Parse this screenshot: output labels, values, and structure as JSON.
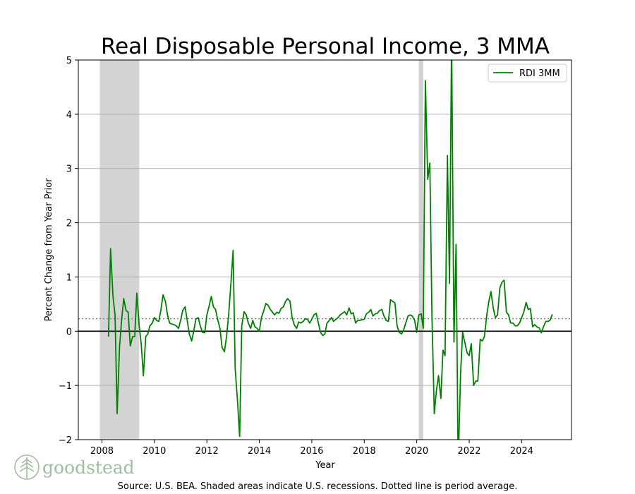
{
  "chart_data": {
    "type": "line",
    "title": "Real Disposable Personal Income, 3 MMA",
    "xlabel": "Year",
    "ylabel": "Percent Change from Year Prior",
    "xlim": [
      2007.1,
      2025.9
    ],
    "ylim": [
      -2,
      5
    ],
    "xticks": [
      2008,
      2010,
      2012,
      2014,
      2016,
      2018,
      2020,
      2022,
      2024
    ],
    "yticks": [
      -2,
      -1,
      0,
      1,
      2,
      3,
      4,
      5
    ],
    "ytick_labels": [
      "−2",
      "−1",
      "0",
      "1",
      "2",
      "3",
      "4",
      "5"
    ],
    "grid": "horizontal",
    "legend_position": "top-right",
    "series": [
      {
        "name": "RDI 3MM",
        "color": "#008000",
        "points": [
          [
            2008.25,
            -0.1
          ],
          [
            2008.33,
            1.52
          ],
          [
            2008.42,
            0.65
          ],
          [
            2008.5,
            0.3
          ],
          [
            2008.58,
            -1.52
          ],
          [
            2008.67,
            -0.3
          ],
          [
            2008.75,
            0.2
          ],
          [
            2008.83,
            0.6
          ],
          [
            2008.92,
            0.38
          ],
          [
            2009.0,
            0.35
          ],
          [
            2009.08,
            -0.27
          ],
          [
            2009.17,
            -0.1
          ],
          [
            2009.25,
            -0.1
          ],
          [
            2009.33,
            0.7
          ],
          [
            2009.42,
            0.1
          ],
          [
            2009.5,
            -0.25
          ],
          [
            2009.58,
            -0.82
          ],
          [
            2009.67,
            -0.1
          ],
          [
            2009.75,
            -0.05
          ],
          [
            2009.83,
            0.1
          ],
          [
            2009.92,
            0.15
          ],
          [
            2010.0,
            0.25
          ],
          [
            2010.08,
            0.2
          ],
          [
            2010.17,
            0.18
          ],
          [
            2010.25,
            0.4
          ],
          [
            2010.33,
            0.67
          ],
          [
            2010.42,
            0.55
          ],
          [
            2010.5,
            0.3
          ],
          [
            2010.58,
            0.15
          ],
          [
            2010.67,
            0.13
          ],
          [
            2010.75,
            0.12
          ],
          [
            2010.83,
            0.1
          ],
          [
            2010.92,
            0.05
          ],
          [
            2011.0,
            0.2
          ],
          [
            2011.08,
            0.38
          ],
          [
            2011.17,
            0.45
          ],
          [
            2011.25,
            0.2
          ],
          [
            2011.33,
            -0.05
          ],
          [
            2011.42,
            -0.18
          ],
          [
            2011.5,
            0.0
          ],
          [
            2011.58,
            0.22
          ],
          [
            2011.67,
            0.25
          ],
          [
            2011.75,
            0.1
          ],
          [
            2011.83,
            -0.02
          ],
          [
            2011.92,
            -0.03
          ],
          [
            2012.0,
            0.3
          ],
          [
            2012.08,
            0.45
          ],
          [
            2012.17,
            0.64
          ],
          [
            2012.25,
            0.45
          ],
          [
            2012.33,
            0.4
          ],
          [
            2012.42,
            0.2
          ],
          [
            2012.5,
            0.05
          ],
          [
            2012.58,
            -0.3
          ],
          [
            2012.67,
            -0.38
          ],
          [
            2012.75,
            -0.1
          ],
          [
            2012.83,
            0.3
          ],
          [
            2012.92,
            0.9
          ],
          [
            2013.0,
            1.49
          ],
          [
            2013.08,
            -0.7
          ],
          [
            2013.17,
            -1.3
          ],
          [
            2013.25,
            -1.94
          ],
          [
            2013.33,
            0.1
          ],
          [
            2013.42,
            0.36
          ],
          [
            2013.5,
            0.3
          ],
          [
            2013.58,
            0.15
          ],
          [
            2013.67,
            0.05
          ],
          [
            2013.75,
            0.2
          ],
          [
            2013.83,
            0.08
          ],
          [
            2013.92,
            0.05
          ],
          [
            2014.0,
            0.0
          ],
          [
            2014.08,
            0.25
          ],
          [
            2014.17,
            0.38
          ],
          [
            2014.25,
            0.51
          ],
          [
            2014.33,
            0.48
          ],
          [
            2014.42,
            0.4
          ],
          [
            2014.5,
            0.35
          ],
          [
            2014.58,
            0.3
          ],
          [
            2014.67,
            0.35
          ],
          [
            2014.75,
            0.33
          ],
          [
            2014.83,
            0.42
          ],
          [
            2014.92,
            0.45
          ],
          [
            2015.0,
            0.55
          ],
          [
            2015.08,
            0.6
          ],
          [
            2015.17,
            0.55
          ],
          [
            2015.25,
            0.25
          ],
          [
            2015.33,
            0.12
          ],
          [
            2015.42,
            0.05
          ],
          [
            2015.5,
            0.17
          ],
          [
            2015.58,
            0.15
          ],
          [
            2015.67,
            0.18
          ],
          [
            2015.75,
            0.23
          ],
          [
            2015.83,
            0.22
          ],
          [
            2015.92,
            0.15
          ],
          [
            2016.0,
            0.22
          ],
          [
            2016.08,
            0.3
          ],
          [
            2016.17,
            0.33
          ],
          [
            2016.25,
            0.15
          ],
          [
            2016.33,
            -0.02
          ],
          [
            2016.42,
            -0.08
          ],
          [
            2016.5,
            -0.05
          ],
          [
            2016.58,
            0.15
          ],
          [
            2016.67,
            0.2
          ],
          [
            2016.75,
            0.25
          ],
          [
            2016.83,
            0.18
          ],
          [
            2016.92,
            0.22
          ],
          [
            2017.0,
            0.25
          ],
          [
            2017.08,
            0.3
          ],
          [
            2017.17,
            0.33
          ],
          [
            2017.25,
            0.36
          ],
          [
            2017.33,
            0.3
          ],
          [
            2017.42,
            0.43
          ],
          [
            2017.5,
            0.32
          ],
          [
            2017.58,
            0.34
          ],
          [
            2017.67,
            0.15
          ],
          [
            2017.75,
            0.2
          ],
          [
            2017.83,
            0.2
          ],
          [
            2017.92,
            0.21
          ],
          [
            2018.0,
            0.22
          ],
          [
            2018.08,
            0.32
          ],
          [
            2018.17,
            0.35
          ],
          [
            2018.25,
            0.4
          ],
          [
            2018.33,
            0.28
          ],
          [
            2018.42,
            0.32
          ],
          [
            2018.5,
            0.33
          ],
          [
            2018.58,
            0.38
          ],
          [
            2018.67,
            0.4
          ],
          [
            2018.75,
            0.28
          ],
          [
            2018.83,
            0.2
          ],
          [
            2018.92,
            0.18
          ],
          [
            2019.0,
            0.58
          ],
          [
            2019.08,
            0.55
          ],
          [
            2019.17,
            0.52
          ],
          [
            2019.25,
            0.1
          ],
          [
            2019.33,
            -0.02
          ],
          [
            2019.42,
            -0.05
          ],
          [
            2019.5,
            0.02
          ],
          [
            2019.58,
            0.15
          ],
          [
            2019.67,
            0.28
          ],
          [
            2019.75,
            0.3
          ],
          [
            2019.83,
            0.28
          ],
          [
            2019.92,
            0.2
          ],
          [
            2020.0,
            -0.02
          ],
          [
            2020.08,
            0.3
          ],
          [
            2020.17,
            0.32
          ],
          [
            2020.25,
            0.05
          ],
          [
            2020.33,
            4.62
          ],
          [
            2020.42,
            2.8
          ],
          [
            2020.5,
            3.1
          ],
          [
            2020.58,
            0.3
          ],
          [
            2020.67,
            -1.52
          ],
          [
            2020.75,
            -1.1
          ],
          [
            2020.83,
            -0.82
          ],
          [
            2020.92,
            -1.24
          ],
          [
            2021.0,
            -0.35
          ],
          [
            2021.08,
            -0.45
          ],
          [
            2021.17,
            3.24
          ],
          [
            2021.25,
            0.88
          ],
          [
            2021.33,
            5.4
          ],
          [
            2021.42,
            -0.2
          ],
          [
            2021.5,
            1.6
          ],
          [
            2021.58,
            -2.5
          ],
          [
            2021.67,
            -0.8
          ],
          [
            2021.75,
            -0.02
          ],
          [
            2021.83,
            -0.2
          ],
          [
            2021.92,
            -0.4
          ],
          [
            2022.0,
            -0.45
          ],
          [
            2022.08,
            -0.23
          ],
          [
            2022.17,
            -1.0
          ],
          [
            2022.25,
            -0.92
          ],
          [
            2022.33,
            -0.92
          ],
          [
            2022.42,
            -0.15
          ],
          [
            2022.5,
            -0.18
          ],
          [
            2022.58,
            -0.1
          ],
          [
            2022.67,
            0.3
          ],
          [
            2022.75,
            0.55
          ],
          [
            2022.83,
            0.73
          ],
          [
            2022.92,
            0.42
          ],
          [
            2023.0,
            0.25
          ],
          [
            2023.08,
            0.3
          ],
          [
            2023.17,
            0.8
          ],
          [
            2023.25,
            0.9
          ],
          [
            2023.33,
            0.94
          ],
          [
            2023.42,
            0.35
          ],
          [
            2023.5,
            0.3
          ],
          [
            2023.58,
            0.15
          ],
          [
            2023.67,
            0.15
          ],
          [
            2023.75,
            0.1
          ],
          [
            2023.83,
            0.1
          ],
          [
            2023.92,
            0.15
          ],
          [
            2024.0,
            0.25
          ],
          [
            2024.08,
            0.35
          ],
          [
            2024.17,
            0.53
          ],
          [
            2024.25,
            0.4
          ],
          [
            2024.33,
            0.42
          ],
          [
            2024.42,
            0.08
          ],
          [
            2024.5,
            0.12
          ],
          [
            2024.58,
            0.08
          ],
          [
            2024.67,
            0.06
          ],
          [
            2024.75,
            -0.03
          ],
          [
            2024.83,
            0.08
          ],
          [
            2024.92,
            0.18
          ],
          [
            2025.0,
            0.18
          ],
          [
            2025.08,
            0.2
          ],
          [
            2025.17,
            0.31
          ]
        ]
      }
    ],
    "recessions": [
      [
        2007.92,
        2009.42
      ],
      [
        2020.08,
        2020.25
      ]
    ],
    "recession_color": "#d3d3d3",
    "period_average": 0.23,
    "source_note": "Source: U.S. BEA. Shaded areas indicate U.S. recessions. Dotted line is period average."
  },
  "logo": {
    "text": "goodstead",
    "color": "#9dbf9c"
  }
}
